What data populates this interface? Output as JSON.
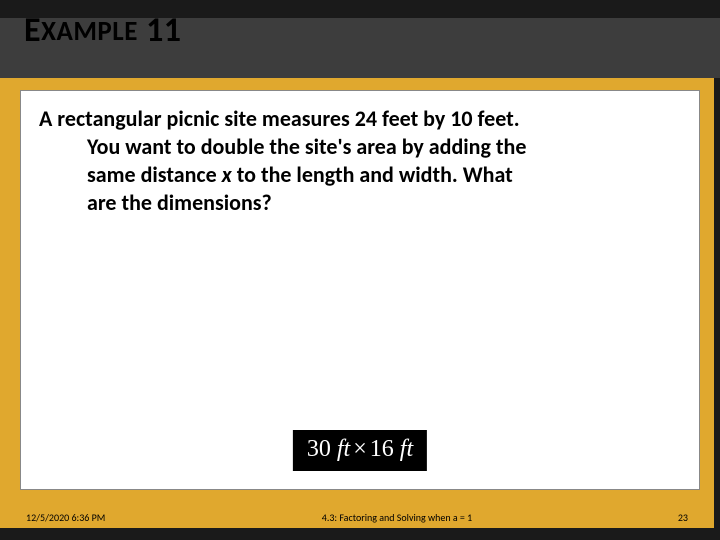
{
  "title": {
    "word": "EXAMPLE",
    "number": "11"
  },
  "problem": {
    "line1": "A rectangular picnic site measures 24 feet by 10 feet.",
    "line2": "You want to double the site's area by adding the",
    "line3_pre": "same distance ",
    "line3_var": "x",
    "line3_post": " to the length and width.  What",
    "line4": "are the dimensions?"
  },
  "answer": {
    "v1": "30",
    "u1": "ft",
    "op": "×",
    "v2": "16",
    "u2": "ft"
  },
  "footer": {
    "timestamp": "12/5/2020 6:36 PM",
    "center": "4.3: Factoring and Solving when a = 1",
    "page": "23"
  },
  "colors": {
    "dark_bg": "#1a1a1a",
    "band": "#3d3d3d",
    "gold": "#e0a82e",
    "card": "#ffffff",
    "answer_bg": "#000000",
    "answer_fg": "#ffffff"
  }
}
